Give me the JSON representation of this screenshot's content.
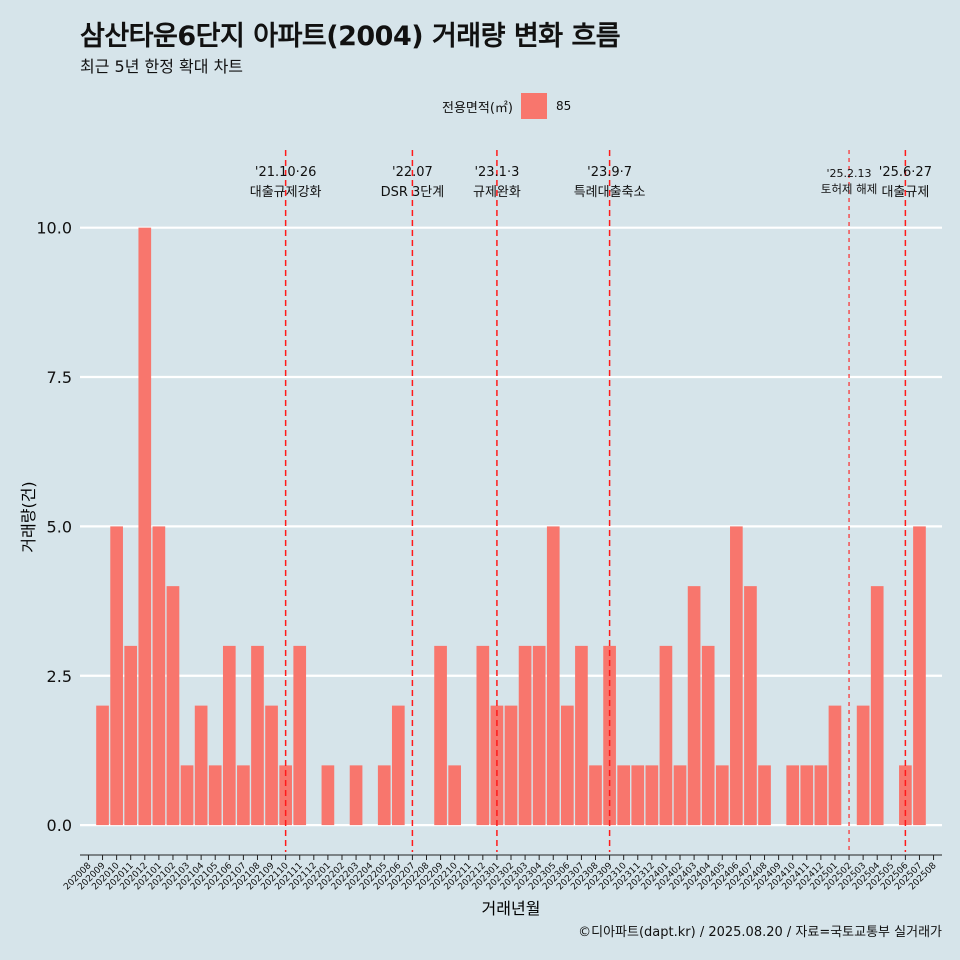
{
  "title": "삼산타운6단지 아파트(2004) 거래량 변화 흐름",
  "subtitle": "최근 5년 한정 확대 차트",
  "caption": "©디아파트(dapt.kr) / 2025.08.20 / 자료=국토교통부 실거래가",
  "legend": {
    "title": "전용면적(㎡)",
    "items": [
      {
        "label": "85",
        "color": "#f8766d"
      }
    ]
  },
  "chart_data": {
    "type": "bar",
    "xlabel": "거래년월",
    "ylabel": "거래량(건)",
    "ylim": [
      -0.45,
      11.3
    ],
    "yticks": [
      0.0,
      2.5,
      5.0,
      7.5,
      10.0
    ],
    "ytick_labels": [
      "0.0",
      "2.5",
      "5.0",
      "7.5",
      "10.0"
    ],
    "grid": true,
    "bar_color": "#f8766d",
    "categories": [
      "202008",
      "202009",
      "202010",
      "202011",
      "202012",
      "202101",
      "202102",
      "202103",
      "202104",
      "202105",
      "202106",
      "202107",
      "202108",
      "202109",
      "202110",
      "202111",
      "202112",
      "202201",
      "202202",
      "202203",
      "202204",
      "202205",
      "202206",
      "202207",
      "202208",
      "202209",
      "202210",
      "202211",
      "202212",
      "202301",
      "202302",
      "202303",
      "202304",
      "202305",
      "202306",
      "202307",
      "202308",
      "202309",
      "202310",
      "202311",
      "202312",
      "202401",
      "202402",
      "202403",
      "202404",
      "202405",
      "202406",
      "202407",
      "202408",
      "202409",
      "202410",
      "202411",
      "202412",
      "202501",
      "202502",
      "202503",
      "202504",
      "202505",
      "202506",
      "202507",
      "202508"
    ],
    "series": [
      {
        "name": "85",
        "values": [
          0,
          2,
          5,
          3,
          10,
          5,
          4,
          1,
          2,
          1,
          3,
          1,
          3,
          2,
          1,
          3,
          0,
          1,
          0,
          1,
          0,
          1,
          2,
          0,
          0,
          3,
          1,
          0,
          3,
          2,
          2,
          3,
          3,
          5,
          2,
          3,
          1,
          3,
          1,
          1,
          1,
          3,
          1,
          4,
          3,
          1,
          5,
          4,
          1,
          0,
          1,
          1,
          1,
          2,
          0,
          2,
          4,
          0,
          1,
          5,
          0
        ]
      }
    ],
    "annotations": [
      {
        "x": "202110",
        "line1": "'21.10·26",
        "line2": "대출규제강화",
        "dash": "long"
      },
      {
        "x": "202207",
        "line1": "'22.07",
        "line2": "DSR 3단계",
        "dash": "long"
      },
      {
        "x": "202301",
        "line1": "'23.1·3",
        "line2": "규제완화",
        "dash": "long"
      },
      {
        "x": "202309",
        "line1": "'23.9·7",
        "line2": "특례대출축소",
        "dash": "long"
      },
      {
        "x": "202502",
        "line1": "'25.2.13",
        "line2": "토허제 해제",
        "dash": "short"
      },
      {
        "x": "202506",
        "line1": "'25.6·27",
        "line2": "대출규제",
        "dash": "long"
      }
    ]
  }
}
